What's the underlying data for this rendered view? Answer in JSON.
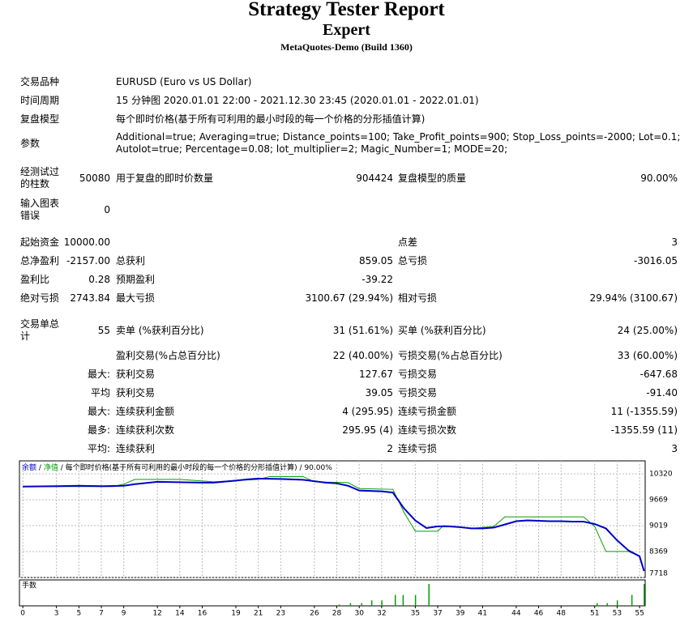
{
  "header": {
    "title": "Strategy Tester Report",
    "subtitle": "Expert",
    "build": "MetaQuotes-Demo (Build 1360)"
  },
  "info": [
    {
      "label": "交易品种",
      "lines": [
        "EURUSD (Euro vs US Dollar)"
      ]
    },
    {
      "label": "时间周期",
      "lines": [
        "15 分钟图 2020.01.01 22:00 - 2021.12.30 23:45 (2020.01.01 - 2022.01.01)"
      ]
    },
    {
      "label": "复盘模型",
      "lines": [
        "每个即时价格(基于所有可利用的最小时段的每一个价格的分形插值计算)"
      ]
    },
    {
      "label": "参数",
      "lines": [
        "Additional=true; Averaging=true; Distance_points=100; Take_Profit_points=900; Stop_Loss_points=-2000; Lot=0.1;",
        "Autolot=true; Percentage=0.08; lot_multiplier=2; Magic_Number=1; MODE=20;"
      ]
    }
  ],
  "stats": [
    [
      "经测试过的柱数",
      "50080",
      "用于复盘的即时价数量",
      "904424",
      "复盘模型的质量",
      "90.00%"
    ],
    [
      "输入图表错误",
      "0",
      null,
      null,
      null,
      null
    ],
    [
      "起始资金",
      "10000.00",
      null,
      null,
      "点差",
      "3"
    ],
    [
      "总净盈利",
      "-2157.00",
      "总获利",
      "859.05",
      "总亏损",
      "-3016.05"
    ],
    [
      "盈利比",
      "0.28",
      "预期盈利",
      "-39.22",
      null,
      null
    ],
    [
      "绝对亏损",
      "2743.84",
      "最大亏损",
      "3100.67 (29.94%)",
      "相对亏损",
      "29.94% (3100.67)"
    ],
    [
      "交易单总计",
      "55",
      "卖单 (%获利百分比)",
      "31 (51.61%)",
      "买单 (%获利百分比)",
      "24 (25.00%)"
    ],
    [
      null,
      null,
      "盈利交易(%占总百分比)",
      "22 (40.00%)",
      "亏损交易(%占总百分比)",
      "33 (60.00%)"
    ],
    [
      null,
      "最大:",
      "获利交易",
      "127.67",
      "亏损交易",
      "-647.68"
    ],
    [
      null,
      "平均",
      "获利交易",
      "39.05",
      "亏损交易",
      "-91.40"
    ],
    [
      null,
      "最大:",
      "连续获利金额",
      "4 (295.95)",
      "连续亏损金额",
      "11 (-1355.59)"
    ],
    [
      null,
      "最多:",
      "连续获利次数",
      "295.95 (4)",
      "连续亏损次数",
      "-1355.59 (11)"
    ],
    [
      null,
      "平均:",
      "连续获利",
      "2",
      "连续亏损",
      "3"
    ]
  ],
  "chart_data": {
    "type": "line",
    "legend_separator": "/",
    "legend_note": "每个即时价格(基于所有可利用的最小时段的每一个价格的分形插值计算)",
    "quality": "90.00%",
    "series": [
      {
        "name": "余额",
        "color": "#0000c8",
        "x": [
          0,
          3,
          5,
          7,
          9,
          10,
          12,
          14,
          16,
          17,
          19,
          20,
          21,
          23,
          25,
          27,
          28,
          29,
          30,
          32,
          33,
          34,
          35,
          36,
          37,
          38,
          39,
          40,
          41,
          42,
          43,
          44,
          45,
          46,
          47,
          48,
          49,
          50,
          51,
          52,
          53,
          54,
          55,
          55.4
        ],
        "values": [
          10000,
          10010,
          10020,
          10010,
          10020,
          10060,
          10120,
          10110,
          10100,
          10100,
          10150,
          10180,
          10200,
          10190,
          10170,
          10100,
          10080,
          10020,
          9900,
          9880,
          9850,
          9450,
          9150,
          8960,
          9000,
          9000,
          8980,
          8950,
          8950,
          8970,
          9050,
          9130,
          9150,
          9140,
          9130,
          9130,
          9120,
          9120,
          9060,
          8950,
          8650,
          8400,
          8250,
          7880
        ]
      },
      {
        "name": "净值",
        "color": "#00a000",
        "x": [
          0,
          8,
          9,
          10,
          14,
          17,
          21,
          22,
          25,
          26,
          29,
          30,
          33,
          34,
          35,
          37,
          37.5,
          40,
          42,
          43,
          47,
          50,
          51,
          52,
          54,
          55,
          55.4
        ],
        "values": [
          10000,
          10000,
          10060,
          10180,
          10180,
          10120,
          10180,
          10250,
          10250,
          10120,
          10100,
          9950,
          9930,
          9350,
          8880,
          8880,
          9020,
          8950,
          9000,
          9240,
          9240,
          9240,
          9000,
          8370,
          8370,
          8250,
          7880
        ]
      }
    ],
    "lots": {
      "name": "手数",
      "color": "#00a000",
      "x": [
        28.2,
        29.2,
        30.2,
        31.1,
        32,
        33.2,
        33.9,
        35,
        36.2,
        51.2,
        52.1,
        53,
        54.3,
        55.4
      ],
      "values": [
        0.1,
        0.2,
        0.2,
        0.4,
        0.4,
        0.8,
        0.8,
        0.8,
        1.6,
        0.2,
        0.2,
        0.4,
        0.8,
        1.6
      ]
    },
    "xlim": [
      -0.3,
      55.5
    ],
    "xticks": [
      0,
      3,
      5,
      7,
      9,
      12,
      14,
      16,
      19,
      21,
      23,
      26,
      28,
      30,
      32,
      35,
      37,
      39,
      41,
      44,
      46,
      48,
      51,
      53,
      55
    ],
    "ylim": [
      7718,
      10564
    ],
    "yticks": [
      10320,
      9669,
      9019,
      8369,
      7718
    ],
    "grid": true
  }
}
